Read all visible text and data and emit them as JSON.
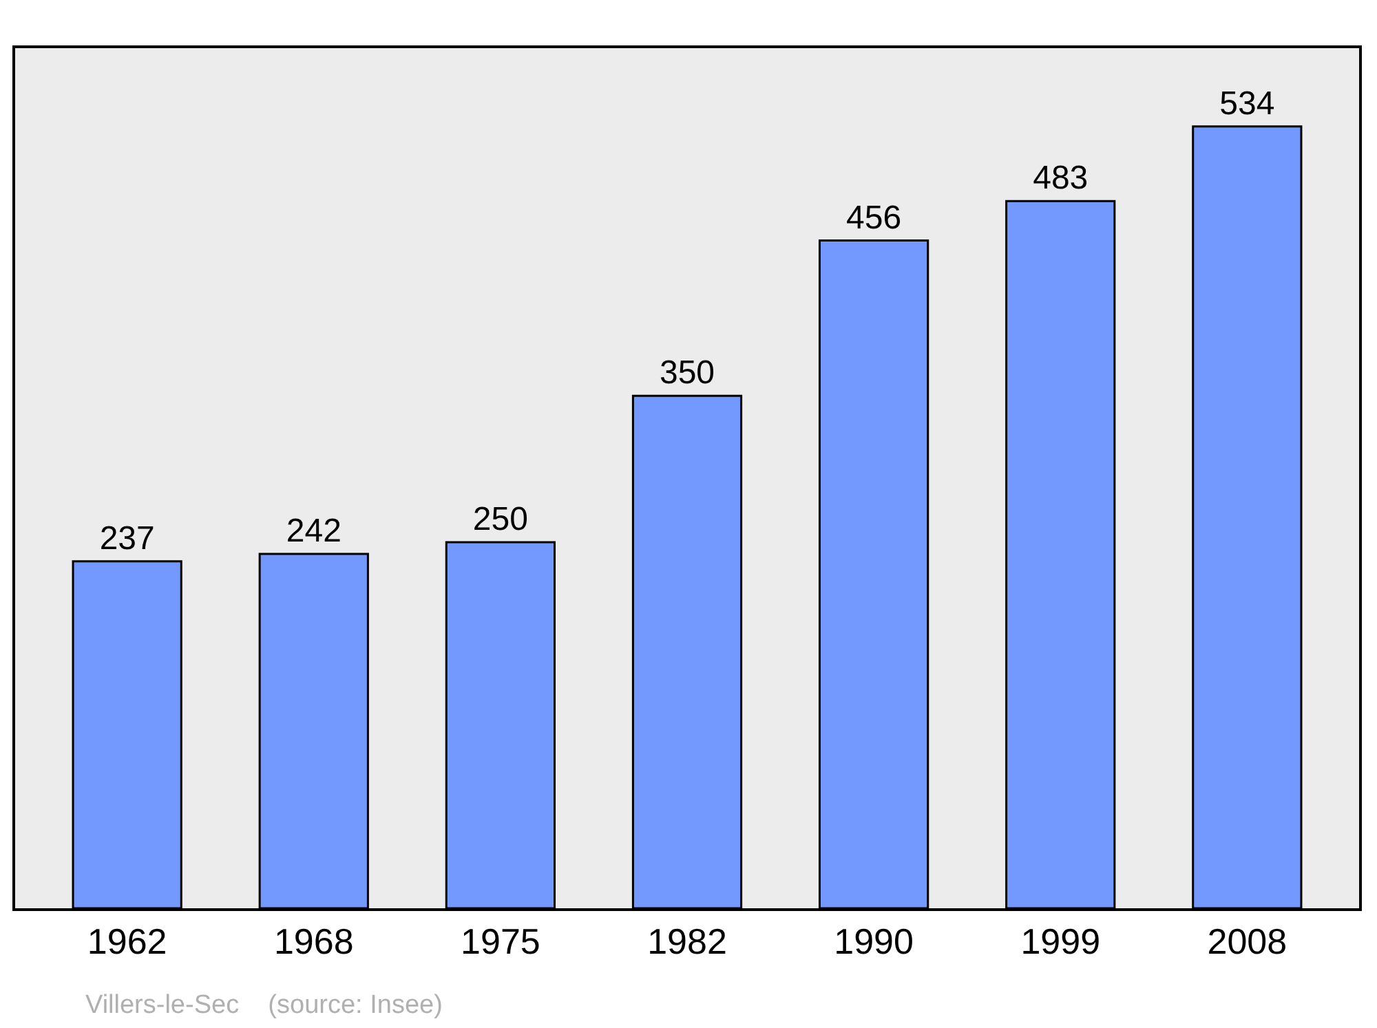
{
  "chart_data": {
    "type": "bar",
    "categories": [
      "1962",
      "1968",
      "1975",
      "1982",
      "1990",
      "1999",
      "2008"
    ],
    "values": [
      237,
      242,
      250,
      350,
      456,
      483,
      534
    ],
    "color": "#7399ff",
    "data_labels": true,
    "tick_labels": "x",
    "grid": false,
    "legend": false,
    "annotations": [
      "Villers-le-Sec    (source: Insee)"
    ]
  }
}
